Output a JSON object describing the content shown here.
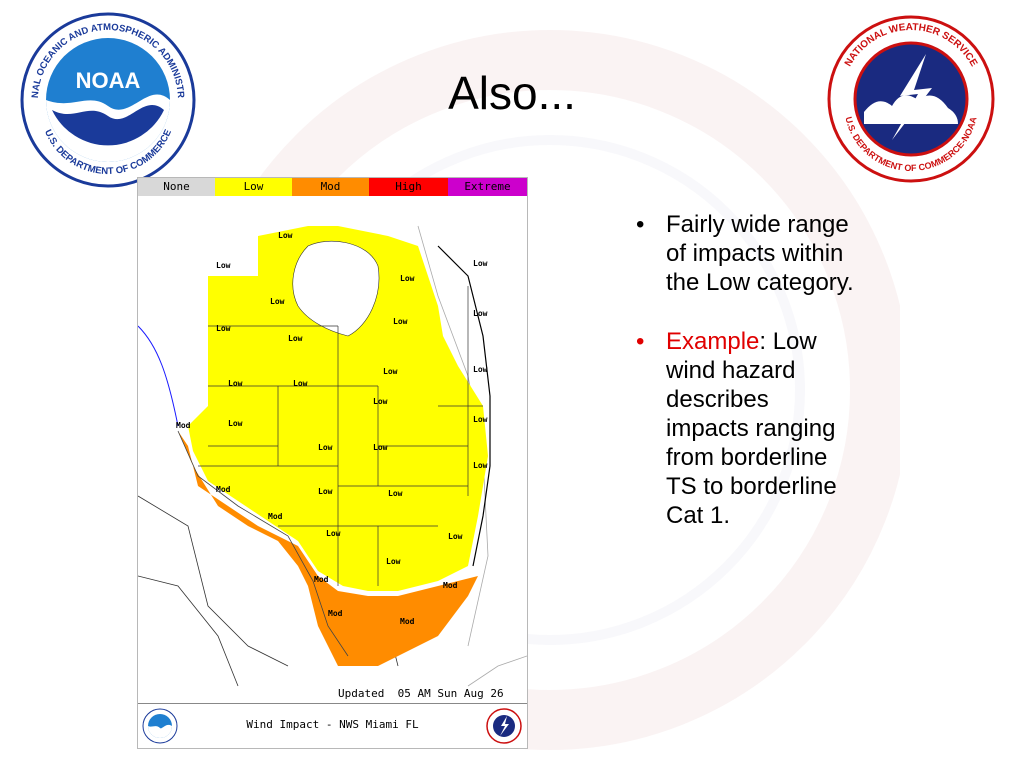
{
  "slide": {
    "title": "Also...",
    "bullets": [
      {
        "text": "Fairly wide range of impacts within the Low category."
      },
      {
        "highlight": "Example",
        "text": ": Low wind hazard describes impacts ranging from borderline TS to borderline Cat 1."
      }
    ]
  },
  "logos": {
    "noaa": {
      "center": "NOAA",
      "ring_top": "NATIONAL OCEANIC AND ATMOSPHERIC ADMINISTRATION",
      "ring_bottom": "U.S. DEPARTMENT OF COMMERCE"
    },
    "nws": {
      "ring_top": "NATIONAL WEATHER SERVICE",
      "ring_bottom": "U.S. DEPARTMENT OF COMMERCE-NOAA"
    }
  },
  "map": {
    "legend": [
      {
        "label": "None",
        "color": "#d8d8d8"
      },
      {
        "label": "Low",
        "color": "#ffff00"
      },
      {
        "label": "Mod",
        "color": "#ff8c00"
      },
      {
        "label": "High",
        "color": "#ff0000"
      },
      {
        "label": "Extreme",
        "color": "#cc00cc"
      }
    ],
    "zone_labels": [
      "Low",
      "Mod"
    ],
    "updated": "Updated  05 AM Sun Aug 26",
    "footer": "Wind Impact - NWS Miami FL"
  },
  "colors": {
    "accent_red": "#e00000",
    "noaa_blue": "#1f7fd0",
    "nws_navy": "#1a2a80",
    "nws_red": "#cc1010"
  }
}
